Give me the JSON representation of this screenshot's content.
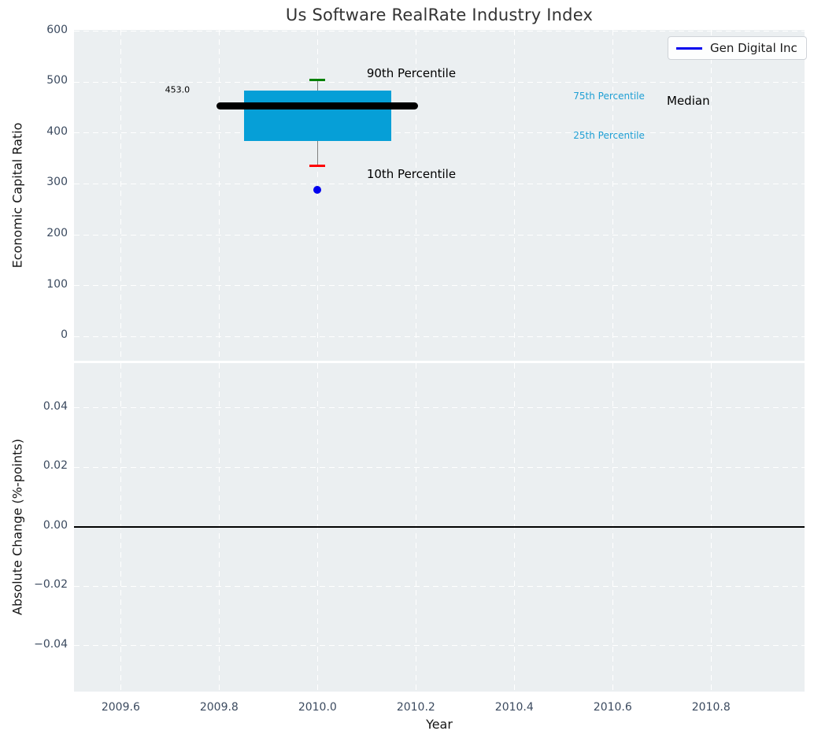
{
  "figure": {
    "title": "Us Software RealRate Industry Index",
    "legend": {
      "label": "Gen Digital Inc",
      "line_color": "#0000ee",
      "position": "upper right"
    }
  },
  "colors": {
    "plot_background": "#ebeff1",
    "grid": "#ffffff",
    "tick_label": "#3b4a5f",
    "axis_label": "#151515",
    "title": "#333333",
    "box_fill": "#069fd7",
    "median_line": "#000000",
    "whisker_line": "#808080",
    "p90_cap": "#008000",
    "p10_cap": "#ff0000",
    "company_point": "#0000ee",
    "percentile_label": "#1f9fd4",
    "zero_line": "#000000"
  },
  "chart_data": [
    {
      "type": "box",
      "title": "Us Software RealRate Industry Index",
      "ylabel": "Economic Capital Ratio",
      "xlim": [
        2009.505,
        2010.99
      ],
      "ylim": [
        -48,
        603
      ],
      "grid": true,
      "xticks": [
        {
          "v": 2009.6,
          "label": "2009.6"
        },
        {
          "v": 2009.8,
          "label": "2009.8"
        },
        {
          "v": 2010.0,
          "label": "2010.0"
        },
        {
          "v": 2010.2,
          "label": "2010.2"
        },
        {
          "v": 2010.4,
          "label": "2010.4"
        },
        {
          "v": 2010.6,
          "label": "2010.6"
        },
        {
          "v": 2010.8,
          "label": "2010.8"
        }
      ],
      "yticks": [
        {
          "v": 600,
          "label": "600"
        },
        {
          "v": 500,
          "label": "500"
        },
        {
          "v": 400,
          "label": "400"
        },
        {
          "v": 300,
          "label": "300"
        },
        {
          "v": 200,
          "label": "200"
        },
        {
          "v": 100,
          "label": "100"
        },
        {
          "v": 0,
          "label": "0"
        }
      ],
      "box": {
        "x": 2010.0,
        "median": 453.0,
        "q1": 385,
        "q3": 483,
        "p10": 335,
        "p90": 505,
        "box_halfwidth": 0.15,
        "median_halfwidth": 0.205,
        "cap_halfwidth": 0.016
      },
      "company_point": {
        "name": "Gen Digital Inc",
        "x": 2010.0,
        "y": 289
      },
      "annotations": [
        {
          "text": "453.0",
          "x": 2009.69,
          "y": 485,
          "size": 11,
          "color": "#000000"
        },
        {
          "text": "90th Percentile",
          "x": 2010.1,
          "y": 517,
          "size": 15,
          "color": "#000000"
        },
        {
          "text": "10th Percentile",
          "x": 2010.1,
          "y": 319,
          "size": 15,
          "color": "#000000"
        },
        {
          "text": "75th Percentile",
          "x": 2010.52,
          "y": 473,
          "size": 12,
          "color": "#1f9fd4"
        },
        {
          "text": "25th Percentile",
          "x": 2010.52,
          "y": 395,
          "size": 12,
          "color": "#1f9fd4"
        },
        {
          "text": "Median",
          "x": 2010.71,
          "y": 464,
          "size": 15,
          "color": "#000000"
        }
      ],
      "legend_entries": [
        {
          "label": "Gen Digital Inc",
          "color": "#0000ee"
        }
      ]
    },
    {
      "type": "line",
      "ylabel": "Absolute Change (%-points)",
      "xlabel": "Year",
      "xlim": [
        2009.505,
        2010.99
      ],
      "ylim": [
        -0.0554,
        0.0551
      ],
      "grid": true,
      "hline": 0.0,
      "xticks": [
        {
          "v": 2009.6,
          "label": "2009.6"
        },
        {
          "v": 2009.8,
          "label": "2009.8"
        },
        {
          "v": 2010.0,
          "label": "2010.0"
        },
        {
          "v": 2010.2,
          "label": "2010.2"
        },
        {
          "v": 2010.4,
          "label": "2010.4"
        },
        {
          "v": 2010.6,
          "label": "2010.6"
        },
        {
          "v": 2010.8,
          "label": "2010.8"
        }
      ],
      "yticks": [
        {
          "v": 0.04,
          "label": "0.04"
        },
        {
          "v": 0.02,
          "label": "0.02"
        },
        {
          "v": 0.0,
          "label": "0.00"
        },
        {
          "v": -0.02,
          "label": "−0.02"
        },
        {
          "v": -0.04,
          "label": "−0.04"
        }
      ],
      "series": {
        "name": "Gen Digital Inc",
        "x": [],
        "y": []
      }
    }
  ]
}
